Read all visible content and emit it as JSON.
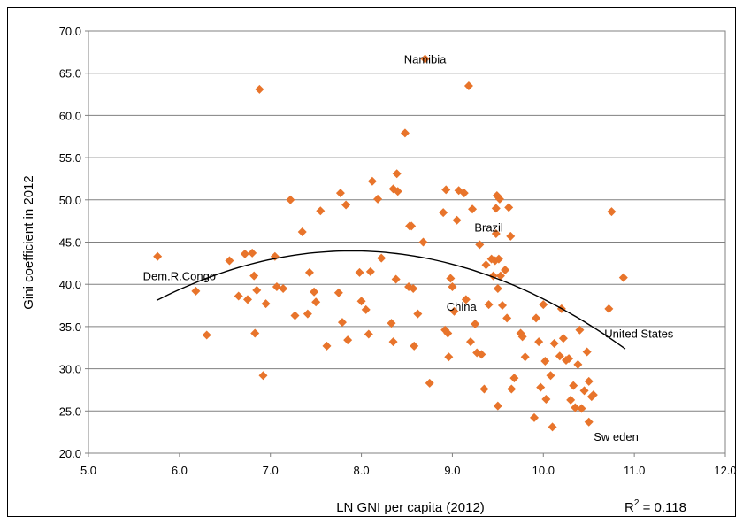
{
  "chart_data": {
    "type": "scatter",
    "xlabel": "LN GNI per capita (2012)",
    "ylabel": "Gini coefficient in 2012",
    "xlim": [
      5.0,
      12.0
    ],
    "ylim": [
      20.0,
      70.0
    ],
    "x_ticks": [
      "5.0",
      "6.0",
      "7.0",
      "8.0",
      "9.0",
      "10.0",
      "11.0",
      "12.0"
    ],
    "y_ticks": [
      "20.0",
      "25.0",
      "30.0",
      "35.0",
      "40.0",
      "45.0",
      "50.0",
      "55.0",
      "60.0",
      "65.0",
      "70.0"
    ],
    "grid": "horizontal",
    "legend": "none",
    "marker_color": "#E8742B",
    "trend_color": "#000000",
    "r_squared": {
      "label": "R",
      "sup": "2",
      "value": " = 0.118"
    },
    "trend": {
      "a": -35.74,
      "b": 20.2,
      "c": -1.28,
      "x_range": [
        5.75,
        10.9
      ]
    },
    "annotations": [
      {
        "text": "Namibia",
        "x": 8.7,
        "y": 66.7
      },
      {
        "text": "Brazil",
        "x": 9.4,
        "y": 46.8
      },
      {
        "text": "Dem.R.Congo",
        "x": 6.0,
        "y": 41.0
      },
      {
        "text": "China",
        "x": 9.1,
        "y": 37.4
      },
      {
        "text": "United States",
        "x": 11.05,
        "y": 34.2
      },
      {
        "text": "Sw eden",
        "x": 10.8,
        "y": 22.0
      }
    ],
    "points": [
      [
        5.76,
        43.3
      ],
      [
        6.18,
        39.2
      ],
      [
        6.3,
        34.0
      ],
      [
        6.55,
        42.8
      ],
      [
        6.65,
        38.6
      ],
      [
        6.72,
        43.6
      ],
      [
        6.75,
        38.2
      ],
      [
        6.8,
        43.7
      ],
      [
        6.82,
        41.0
      ],
      [
        6.83,
        34.2
      ],
      [
        6.85,
        39.3
      ],
      [
        6.88,
        63.1
      ],
      [
        6.92,
        29.2
      ],
      [
        6.95,
        37.7
      ],
      [
        7.05,
        43.3
      ],
      [
        7.07,
        39.7
      ],
      [
        7.14,
        39.5
      ],
      [
        7.22,
        50.0
      ],
      [
        7.27,
        36.3
      ],
      [
        7.35,
        46.2
      ],
      [
        7.41,
        36.5
      ],
      [
        7.43,
        41.4
      ],
      [
        7.48,
        39.1
      ],
      [
        7.5,
        37.9
      ],
      [
        7.55,
        48.7
      ],
      [
        7.62,
        32.7
      ],
      [
        7.75,
        39.0
      ],
      [
        7.77,
        50.8
      ],
      [
        7.79,
        35.5
      ],
      [
        7.83,
        49.4
      ],
      [
        7.85,
        33.4
      ],
      [
        7.98,
        41.4
      ],
      [
        8.0,
        38.0
      ],
      [
        8.05,
        37.0
      ],
      [
        8.08,
        34.1
      ],
      [
        8.1,
        41.5
      ],
      [
        8.12,
        52.2
      ],
      [
        8.18,
        50.1
      ],
      [
        8.22,
        43.1
      ],
      [
        8.33,
        35.4
      ],
      [
        8.35,
        33.2
      ],
      [
        8.35,
        51.3
      ],
      [
        8.38,
        40.6
      ],
      [
        8.39,
        53.1
      ],
      [
        8.4,
        51.0
      ],
      [
        8.48,
        57.9
      ],
      [
        8.52,
        39.7
      ],
      [
        8.53,
        46.9
      ],
      [
        8.55,
        46.9
      ],
      [
        8.57,
        39.5
      ],
      [
        8.58,
        32.7
      ],
      [
        8.62,
        36.5
      ],
      [
        8.68,
        45.0
      ],
      [
        8.7,
        66.7
      ],
      [
        8.75,
        28.3
      ],
      [
        8.9,
        48.5
      ],
      [
        8.92,
        34.6
      ],
      [
        8.93,
        51.2
      ],
      [
        8.95,
        34.2
      ],
      [
        8.96,
        31.4
      ],
      [
        8.98,
        40.7
      ],
      [
        9.0,
        39.7
      ],
      [
        9.02,
        36.8
      ],
      [
        9.05,
        47.6
      ],
      [
        9.07,
        51.1
      ],
      [
        9.13,
        50.8
      ],
      [
        9.15,
        38.2
      ],
      [
        9.18,
        63.5
      ],
      [
        9.2,
        33.2
      ],
      [
        9.22,
        48.9
      ],
      [
        9.25,
        35.3
      ],
      [
        9.27,
        31.9
      ],
      [
        9.3,
        44.7
      ],
      [
        9.32,
        31.7
      ],
      [
        9.35,
        27.6
      ],
      [
        9.37,
        42.3
      ],
      [
        9.4,
        37.6
      ],
      [
        9.43,
        43.0
      ],
      [
        9.45,
        41.0
      ],
      [
        9.47,
        42.8
      ],
      [
        9.48,
        49.0
      ],
      [
        9.48,
        46.0
      ],
      [
        9.49,
        50.5
      ],
      [
        9.5,
        39.5
      ],
      [
        9.5,
        25.6
      ],
      [
        9.51,
        43.0
      ],
      [
        9.52,
        50.1
      ],
      [
        9.53,
        41.0
      ],
      [
        9.55,
        37.5
      ],
      [
        9.58,
        41.7
      ],
      [
        9.6,
        36.0
      ],
      [
        9.62,
        49.1
      ],
      [
        9.64,
        45.7
      ],
      [
        9.65,
        27.6
      ],
      [
        9.68,
        28.9
      ],
      [
        9.75,
        34.2
      ],
      [
        9.77,
        33.8
      ],
      [
        9.8,
        31.4
      ],
      [
        9.9,
        24.2
      ],
      [
        9.92,
        36.0
      ],
      [
        9.95,
        33.2
      ],
      [
        9.97,
        27.8
      ],
      [
        10.0,
        37.6
      ],
      [
        10.02,
        30.9
      ],
      [
        10.03,
        26.4
      ],
      [
        10.08,
        29.2
      ],
      [
        10.1,
        23.1
      ],
      [
        10.12,
        33.0
      ],
      [
        10.18,
        31.5
      ],
      [
        10.2,
        37.1
      ],
      [
        10.22,
        33.6
      ],
      [
        10.25,
        31.0
      ],
      [
        10.28,
        31.2
      ],
      [
        10.3,
        26.3
      ],
      [
        10.33,
        28.0
      ],
      [
        10.35,
        25.4
      ],
      [
        10.38,
        30.5
      ],
      [
        10.4,
        34.6
      ],
      [
        10.42,
        25.3
      ],
      [
        10.45,
        27.4
      ],
      [
        10.48,
        32.0
      ],
      [
        10.5,
        28.5
      ],
      [
        10.5,
        23.7
      ],
      [
        10.53,
        26.7
      ],
      [
        10.55,
        26.9
      ],
      [
        10.72,
        37.1
      ],
      [
        10.75,
        48.6
      ],
      [
        10.88,
        40.8
      ]
    ]
  }
}
